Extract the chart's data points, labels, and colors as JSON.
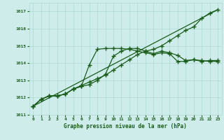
{
  "bg_color": "#ceecea",
  "grid_color": "#add8d5",
  "line_color": "#1a5c1a",
  "xlabel": "Graphe pression niveau de la mer (hPa)",
  "xlim": [
    -0.5,
    23.5
  ],
  "ylim": [
    1011.0,
    1017.5
  ],
  "yticks": [
    1011,
    1012,
    1013,
    1014,
    1015,
    1016,
    1017
  ],
  "xticks": [
    0,
    1,
    2,
    3,
    4,
    5,
    6,
    7,
    8,
    9,
    10,
    11,
    12,
    13,
    14,
    15,
    16,
    17,
    18,
    19,
    20,
    21,
    22,
    23
  ],
  "series": [
    {
      "x": [
        0,
        1,
        2,
        3,
        4,
        5,
        6,
        7,
        8,
        9,
        10,
        11,
        12,
        13,
        14,
        15,
        16,
        17,
        18,
        19,
        20,
        21,
        22,
        23
      ],
      "y": [
        1011.5,
        1011.9,
        1012.1,
        1012.1,
        1012.2,
        1012.5,
        1012.7,
        1012.9,
        1013.1,
        1013.3,
        1013.6,
        1013.9,
        1014.2,
        1014.5,
        1014.7,
        1014.8,
        1015.0,
        1015.3,
        1015.6,
        1015.9,
        1016.1,
        1016.6,
        1016.9,
        1017.1
      ],
      "marker": "+",
      "markersize": 4,
      "linewidth": 0.9,
      "linestyle": "-"
    },
    {
      "x": [
        0,
        1,
        2,
        3,
        4,
        5,
        6,
        7,
        8,
        9,
        10,
        11,
        12,
        13,
        14,
        15,
        16,
        17,
        18,
        19,
        20,
        21,
        22,
        23
      ],
      "y": [
        1011.5,
        1011.9,
        1012.1,
        1012.1,
        1012.2,
        1012.5,
        1012.65,
        1013.9,
        1014.8,
        1014.85,
        1014.85,
        1014.85,
        1014.8,
        1014.7,
        1014.6,
        1014.5,
        1014.6,
        1014.55,
        1014.1,
        1014.1,
        1014.2,
        1014.15,
        1014.1,
        1014.1
      ],
      "marker": "+",
      "markersize": 4,
      "linewidth": 0.9,
      "linestyle": "-"
    },
    {
      "x": [
        0,
        1,
        2,
        3,
        4,
        5,
        6,
        7,
        8,
        9,
        10,
        11,
        12,
        13,
        14,
        15,
        16,
        17,
        18,
        19,
        20,
        21,
        22,
        23
      ],
      "y": [
        1011.5,
        1011.9,
        1012.1,
        1012.1,
        1012.2,
        1012.5,
        1012.65,
        1012.75,
        1013.0,
        1013.35,
        1014.4,
        1014.7,
        1014.85,
        1014.85,
        1014.7,
        1014.55,
        1014.7,
        1014.6,
        1014.45,
        1014.15,
        1014.2,
        1014.1,
        1014.15,
        1014.15
      ],
      "marker": "+",
      "markersize": 4,
      "linewidth": 0.9,
      "linestyle": "-"
    },
    {
      "x": [
        0,
        23
      ],
      "y": [
        1011.5,
        1017.1
      ],
      "marker": "None",
      "markersize": 0,
      "linewidth": 0.9,
      "linestyle": "-"
    }
  ]
}
